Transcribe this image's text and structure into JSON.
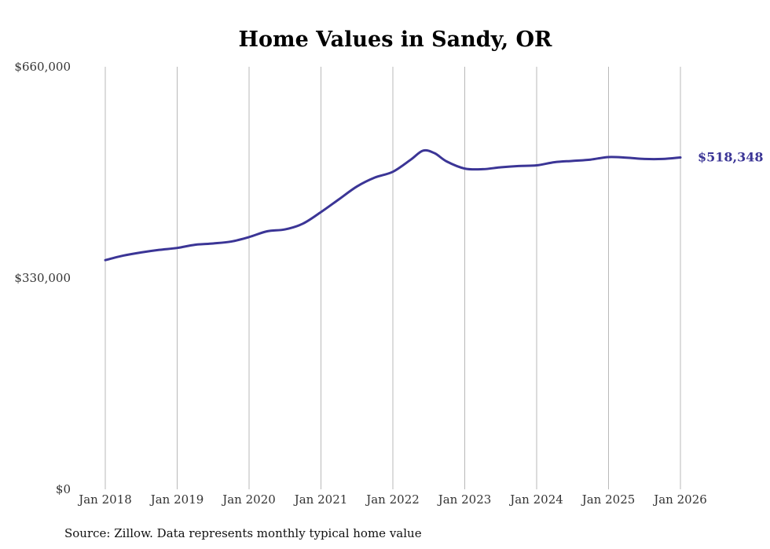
{
  "colors": {
    "series": "#3b3596",
    "grid": "#b9b9b9",
    "text": "#333333"
  },
  "chart_data": {
    "type": "line",
    "title": "Home Values in Sandy, OR",
    "xlabel": "",
    "ylabel": "",
    "x_range": [
      2018.0,
      2026.0
    ],
    "ylim": [
      0,
      660000
    ],
    "y_ticks": [
      {
        "value": 0,
        "label": "$0"
      },
      {
        "value": 330000,
        "label": "$330,000"
      },
      {
        "value": 660000,
        "label": "$660,000"
      }
    ],
    "x_ticks": [
      {
        "value": 2018,
        "label": "Jan 2018"
      },
      {
        "value": 2019,
        "label": "Jan 2019"
      },
      {
        "value": 2020,
        "label": "Jan 2020"
      },
      {
        "value": 2021,
        "label": "Jan 2021"
      },
      {
        "value": 2022,
        "label": "Jan 2022"
      },
      {
        "value": 2023,
        "label": "Jan 2023"
      },
      {
        "value": 2024,
        "label": "Jan 2024"
      },
      {
        "value": 2025,
        "label": "Jan 2025"
      },
      {
        "value": 2026,
        "label": "Jan 2026"
      }
    ],
    "grid": "vertical",
    "series": [
      {
        "name": "Typical home value",
        "end_label": "$518,348",
        "points": [
          [
            2018.0,
            358000
          ],
          [
            2018.25,
            365000
          ],
          [
            2018.5,
            370000
          ],
          [
            2018.75,
            374000
          ],
          [
            2019.0,
            377000
          ],
          [
            2019.25,
            382000
          ],
          [
            2019.5,
            384000
          ],
          [
            2019.75,
            387000
          ],
          [
            2020.0,
            394000
          ],
          [
            2020.25,
            403000
          ],
          [
            2020.5,
            406000
          ],
          [
            2020.75,
            415000
          ],
          [
            2021.0,
            433000
          ],
          [
            2021.25,
            453000
          ],
          [
            2021.5,
            473000
          ],
          [
            2021.75,
            487000
          ],
          [
            2022.0,
            496000
          ],
          [
            2022.25,
            515000
          ],
          [
            2022.42,
            529000
          ],
          [
            2022.58,
            525000
          ],
          [
            2022.75,
            512000
          ],
          [
            2023.0,
            501000
          ],
          [
            2023.25,
            500000
          ],
          [
            2023.5,
            503000
          ],
          [
            2023.75,
            505000
          ],
          [
            2024.0,
            506000
          ],
          [
            2024.25,
            511000
          ],
          [
            2024.5,
            513000
          ],
          [
            2024.75,
            515000
          ],
          [
            2025.0,
            519000
          ],
          [
            2025.25,
            518000
          ],
          [
            2025.5,
            516000
          ],
          [
            2025.75,
            516000
          ],
          [
            2026.0,
            518348
          ]
        ]
      }
    ]
  },
  "footer": {
    "source": "Source: Zillow. Data represents monthly typical home value"
  }
}
